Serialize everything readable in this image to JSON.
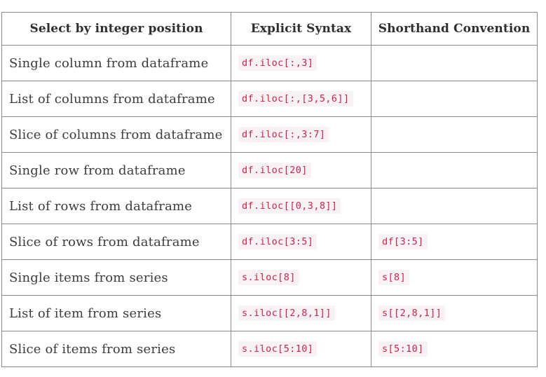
{
  "table": {
    "headers": [
      "Select by integer position",
      "Explicit Syntax",
      "Shorthand Convention"
    ],
    "rows": [
      {
        "label": "Single column from dataframe",
        "explicit": "df.iloc[:,3]",
        "shorthand": ""
      },
      {
        "label": "List of columns from dataframe",
        "explicit": "df.iloc[:,[3,5,6]]",
        "shorthand": ""
      },
      {
        "label": "Slice of columns from dataframe",
        "explicit": "df.iloc[:,3:7]",
        "shorthand": ""
      },
      {
        "label": "Single row from dataframe",
        "explicit": "df.iloc[20]",
        "shorthand": ""
      },
      {
        "label": "List of rows from dataframe",
        "explicit": "df.iloc[[0,3,8]]",
        "shorthand": ""
      },
      {
        "label": "Slice of rows from dataframe",
        "explicit": "df.iloc[3:5]",
        "shorthand": "df[3:5]"
      },
      {
        "label": "Single items from series",
        "explicit": "s.iloc[8]",
        "shorthand": "s[8]"
      },
      {
        "label": "List of item from series",
        "explicit": "s.iloc[[2,8,1]]",
        "shorthand": "s[[2,8,1]]"
      },
      {
        "label": "Slice of items from series",
        "explicit": "s.iloc[5:10]",
        "shorthand": "s[5:10]"
      }
    ]
  },
  "colors": {
    "code_text": "#c7254e",
    "code_background": "#f9f2f4",
    "border": "#8a8a8a"
  }
}
